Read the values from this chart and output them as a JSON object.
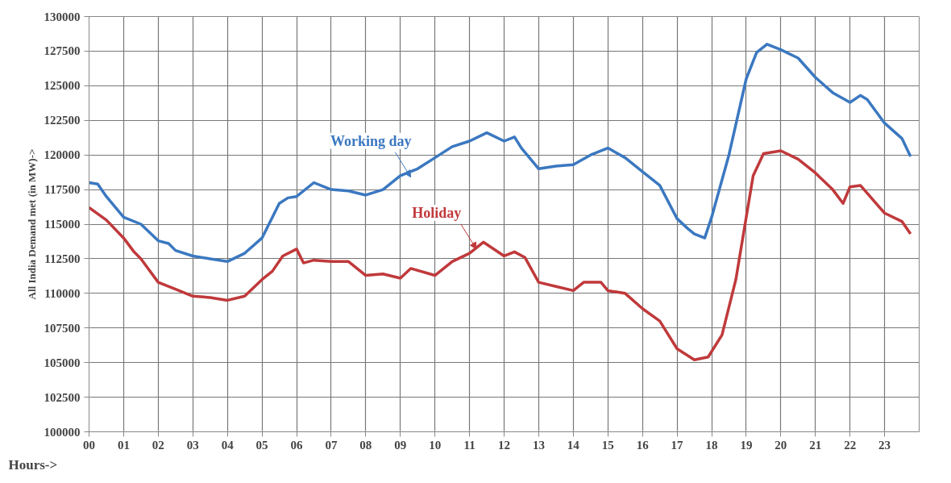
{
  "chart_data": {
    "type": "line",
    "xlabel": "Hours->",
    "ylabel": "All India Demand met (in MW)->",
    "xlim": [
      0,
      24
    ],
    "ylim": [
      100000,
      130000
    ],
    "xticks": [
      {
        "value": 0,
        "label": "00"
      },
      {
        "value": 1,
        "label": "01"
      },
      {
        "value": 2,
        "label": "02"
      },
      {
        "value": 3,
        "label": "03"
      },
      {
        "value": 4,
        "label": "04"
      },
      {
        "value": 5,
        "label": "05"
      },
      {
        "value": 6,
        "label": "06"
      },
      {
        "value": 7,
        "label": "07"
      },
      {
        "value": 8,
        "label": "08"
      },
      {
        "value": 9,
        "label": "09"
      },
      {
        "value": 10,
        "label": "10"
      },
      {
        "value": 11,
        "label": "11"
      },
      {
        "value": 12,
        "label": "12"
      },
      {
        "value": 13,
        "label": "13"
      },
      {
        "value": 14,
        "label": "14"
      },
      {
        "value": 15,
        "label": "15"
      },
      {
        "value": 16,
        "label": "16"
      },
      {
        "value": 17,
        "label": "17"
      },
      {
        "value": 18,
        "label": "18"
      },
      {
        "value": 19,
        "label": "19"
      },
      {
        "value": 20,
        "label": "20"
      },
      {
        "value": 21,
        "label": "21"
      },
      {
        "value": 22,
        "label": "22"
      },
      {
        "value": 23,
        "label": "23"
      }
    ],
    "yticks": [
      100000,
      102500,
      105000,
      107500,
      110000,
      112500,
      115000,
      117500,
      120000,
      122500,
      125000,
      127500,
      130000
    ],
    "grid": true,
    "marker": "none",
    "line_style": "solid",
    "series": [
      {
        "color": "#3b78c0",
        "x": [
          0,
          0.25,
          0.5,
          1,
          1.5,
          2,
          2.3,
          2.5,
          3,
          3.5,
          4,
          4.5,
          5,
          5.5,
          5.75,
          6,
          6.5,
          7,
          7.5,
          8,
          8.5,
          9,
          9.5,
          10,
          10.5,
          11,
          11.5,
          12,
          12.3,
          12.5,
          13,
          13.5,
          14,
          14.5,
          15,
          15.5,
          16,
          16.5,
          17,
          17.3,
          17.5,
          17.8,
          18,
          18.5,
          19,
          19.3,
          19.6,
          20,
          20.5,
          21,
          21.5,
          22,
          22.3,
          22.5,
          23,
          23.5,
          23.75
        ],
        "values": [
          118000,
          117900,
          117000,
          115500,
          115000,
          113800,
          113600,
          113100,
          112700,
          112500,
          112300,
          112900,
          114000,
          116500,
          116900,
          117000,
          118000,
          117500,
          117400,
          117100,
          117500,
          118500,
          119000,
          119800,
          120600,
          121000,
          121600,
          121000,
          121300,
          120500,
          119000,
          119200,
          119300,
          120000,
          120500,
          119800,
          118800,
          117800,
          115400,
          114700,
          114300,
          114000,
          115500,
          120000,
          125500,
          127400,
          128000,
          127600,
          127000,
          125600,
          124500,
          123800,
          124300,
          124000,
          122300,
          121200,
          119900
        ]
      },
      {
        "color": "#c0393b",
        "x": [
          0,
          0.5,
          1,
          1.3,
          1.5,
          2,
          2.5,
          3,
          3.5,
          4,
          4.5,
          5,
          5.3,
          5.6,
          6,
          6.2,
          6.5,
          7,
          7.5,
          8,
          8.5,
          9,
          9.3,
          10,
          10.5,
          11,
          11.4,
          12,
          12.3,
          12.6,
          13,
          13.5,
          14,
          14.3,
          14.8,
          15,
          15.5,
          16,
          16.5,
          17,
          17.5,
          17.9,
          18.3,
          18.7,
          19.2,
          19.5,
          20,
          20.5,
          21,
          21.5,
          21.8,
          22,
          22.3,
          23,
          23.5,
          23.75
        ],
        "values": [
          116200,
          115300,
          114000,
          113000,
          112500,
          110800,
          110300,
          109800,
          109700,
          109500,
          109800,
          111000,
          111600,
          112700,
          113200,
          112200,
          112400,
          112300,
          112300,
          111300,
          111400,
          111100,
          111800,
          111300,
          112300,
          112900,
          113700,
          112700,
          113000,
          112600,
          110800,
          110500,
          110200,
          110800,
          110800,
          110200,
          110000,
          108900,
          108000,
          106000,
          105200,
          105400,
          107000,
          111000,
          118500,
          120100,
          120300,
          119700,
          118700,
          117500,
          116500,
          117700,
          117800,
          115800,
          115200,
          114300
        ]
      }
    ],
    "annotations": [
      {
        "text": "Working day",
        "x": 9.3,
        "y": 118400
      },
      {
        "text": "Holiday",
        "x": 11.2,
        "y": 113200
      }
    ]
  }
}
